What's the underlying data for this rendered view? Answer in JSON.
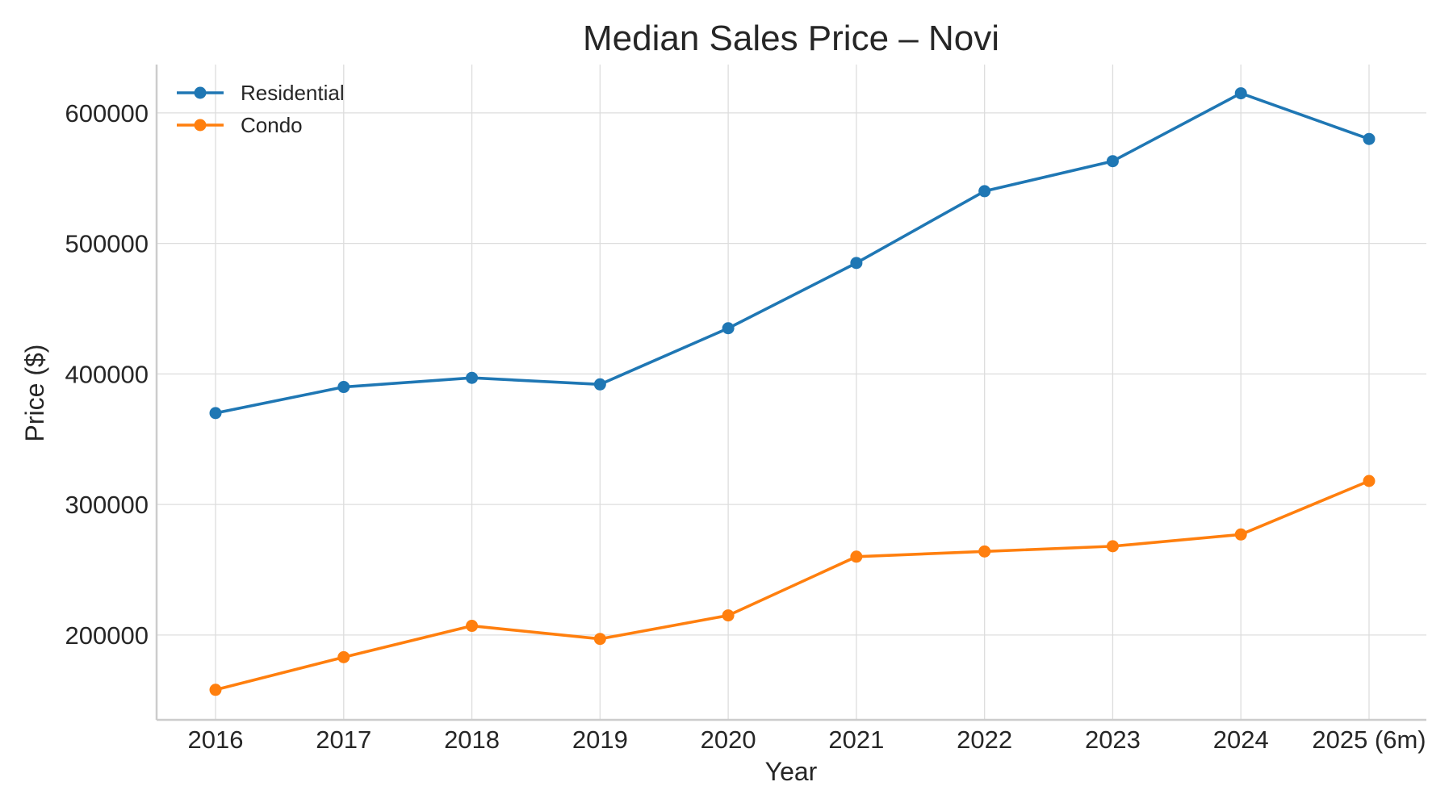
{
  "chart_data": {
    "type": "line",
    "title": "Median Sales Price – Novi",
    "xlabel": "Year",
    "ylabel": "Price ($)",
    "categories": [
      "2016",
      "2017",
      "2018",
      "2019",
      "2020",
      "2021",
      "2022",
      "2023",
      "2024",
      "2025 (6m)"
    ],
    "ylim": [
      135000,
      637000
    ],
    "yticks": [
      200000,
      300000,
      400000,
      500000,
      600000
    ],
    "grid": true,
    "legend_position": "top-left",
    "series": [
      {
        "name": "Residential",
        "color": "#1f77b4",
        "marker": "circle",
        "values": [
          370000,
          390000,
          397000,
          392000,
          435000,
          485000,
          540000,
          563000,
          615000,
          580000
        ]
      },
      {
        "name": "Condo",
        "color": "#ff7f0e",
        "marker": "circle",
        "values": [
          158000,
          183000,
          207000,
          197000,
          215000,
          260000,
          264000,
          268000,
          277000,
          318000
        ]
      }
    ]
  }
}
